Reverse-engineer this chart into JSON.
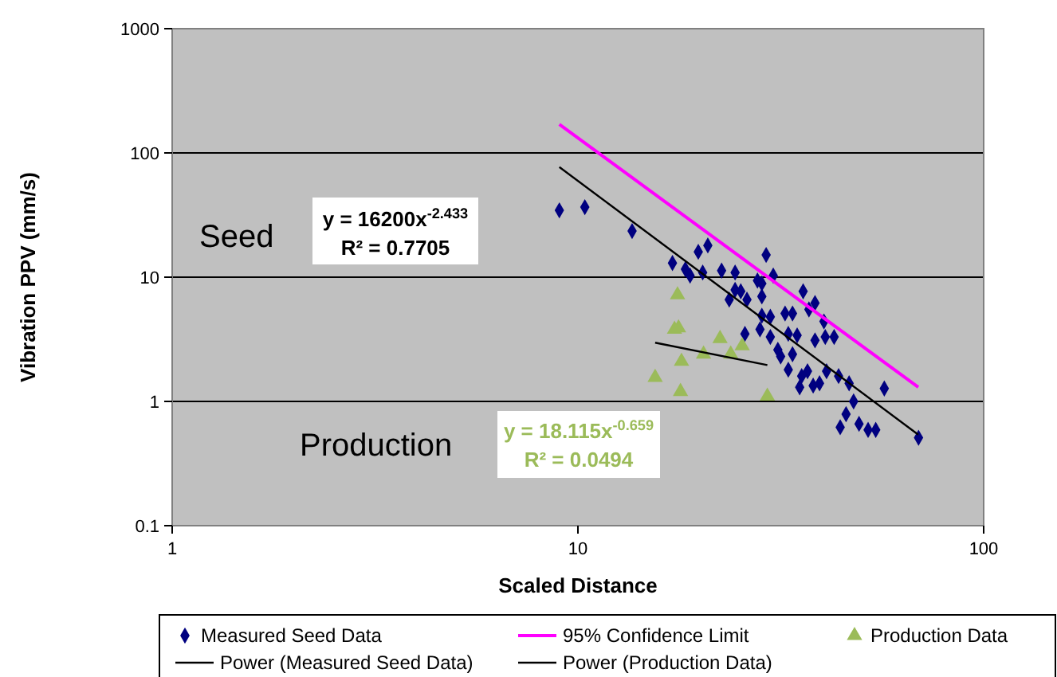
{
  "chart_data": {
    "type": "scatter",
    "xlabel": "Scaled Distance",
    "ylabel": "Vibration PPV (mm/s)",
    "log": "xy",
    "xlim": [
      1,
      100
    ],
    "xticks": [
      1,
      10,
      100
    ],
    "ylim": [
      0.1,
      1000
    ],
    "yticks": [
      0.1,
      1,
      10,
      100,
      1000
    ],
    "grid": "y",
    "legend": "bottom",
    "annotations": [
      "Seed",
      "Production",
      "y = 16200x$^{-2.433}$",
      "R² = 0.7705",
      "y = 18.115x$^{-0.659}$",
      "R² = 0.0494"
    ],
    "series": [
      {
        "name": "Measured Seed Data",
        "marker": "diamond",
        "color": "#000080",
        "x": [
          9.0,
          10.4,
          13.6,
          17.1,
          19.8,
          20.9,
          18.4,
          18.9,
          20.3,
          22.6,
          24.4,
          29.1,
          30.3,
          28.4,
          27.7,
          24.4,
          25.2,
          23.6,
          26.1,
          28.4,
          28.4,
          29.8,
          28.1,
          25.8,
          31.1,
          35.9,
          38.4,
          37.1,
          32.4,
          33.8,
          40.4,
          29.8,
          33.0,
          34.7,
          38.4,
          40.7,
          42.8,
          31.6,
          33.8,
          33.0,
          35.6,
          36.8,
          39.4,
          41.0,
          43.9,
          35.2,
          38.0,
          46.6,
          56.9,
          47.8,
          45.8,
          44.3,
          49.3,
          51.9,
          54.2,
          69.1
        ],
        "values": [
          34.5,
          36.6,
          23.5,
          13.0,
          16.0,
          18.0,
          11.6,
          10.3,
          10.9,
          11.3,
          10.9,
          15.1,
          10.3,
          8.9,
          9.4,
          7.9,
          7.7,
          6.6,
          6.6,
          7.0,
          4.9,
          4.8,
          3.8,
          3.5,
          2.6,
          7.7,
          6.2,
          5.5,
          5.1,
          5.1,
          4.4,
          3.3,
          3.5,
          3.4,
          3.1,
          3.3,
          3.3,
          2.3,
          2.4,
          1.8,
          1.6,
          1.75,
          1.4,
          1.75,
          1.6,
          1.3,
          1.34,
          1.4,
          1.27,
          1.0,
          0.79,
          0.62,
          0.66,
          0.59,
          0.59,
          0.51
        ]
      },
      {
        "name": "95% Confidence Limit",
        "type": "line",
        "marker": "none",
        "color": "#ff00ff",
        "x": [
          9,
          69
        ],
        "values": [
          170,
          1.3
        ]
      },
      {
        "name": "Production Data",
        "marker": "triangle",
        "color": "#9bbb59",
        "x": [
          17.6,
          17.3,
          17.7,
          22.4,
          25.4,
          20.4,
          23.8,
          18.0,
          15.5,
          17.9,
          29.3
        ],
        "values": [
          7.2,
          3.8,
          3.9,
          3.2,
          2.8,
          2.4,
          2.4,
          2.1,
          1.56,
          1.2,
          1.1
        ]
      },
      {
        "name": "Power (Measured Seed Data)",
        "type": "line",
        "marker": "none",
        "color": "#000000",
        "x": [
          9,
          69
        ],
        "values": [
          77,
          0.54
        ]
      },
      {
        "name": "Power (Production Data)",
        "type": "line",
        "marker": "none",
        "color": "#000000",
        "x": [
          15.5,
          29.3
        ],
        "values": [
          2.97,
          1.96
        ]
      }
    ]
  }
}
